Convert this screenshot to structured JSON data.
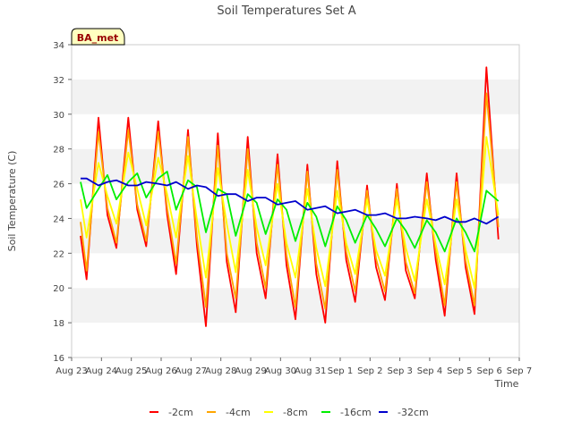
{
  "chart_data": {
    "type": "line",
    "title": "Soil Temperatures Set A",
    "xlabel": "Time",
    "ylabel": "Soil Temperature (C)",
    "annotation": "BA_met",
    "ylim": [
      16,
      34
    ],
    "yticks": [
      16,
      18,
      20,
      22,
      24,
      26,
      28,
      30,
      32,
      34
    ],
    "xlim": [
      0,
      15
    ],
    "xticks": [
      0,
      1,
      2,
      3,
      4,
      5,
      6,
      7,
      8,
      9,
      10,
      11,
      12,
      13,
      14,
      15
    ],
    "xtick_labels": [
      "Aug 23",
      "Aug 24",
      "Aug 25",
      "Aug 26",
      "Aug 27",
      "Aug 28",
      "Aug 29",
      "Aug 30",
      "Aug 31",
      "Sep 1",
      "Sep 2",
      "Sep 3",
      "Sep 4",
      "Sep 5",
      "Sep 6",
      "Sep 7"
    ],
    "grid": "horizontal bands",
    "legend_position": "bottom",
    "x": [
      0.3,
      0.5,
      0.9,
      1.2,
      1.5,
      1.9,
      2.2,
      2.5,
      2.9,
      3.2,
      3.5,
      3.9,
      4.2,
      4.5,
      4.9,
      5.2,
      5.5,
      5.9,
      6.2,
      6.5,
      6.9,
      7.2,
      7.5,
      7.9,
      8.2,
      8.5,
      8.9,
      9.2,
      9.5,
      9.9,
      10.2,
      10.5,
      10.9,
      11.2,
      11.5,
      11.9,
      12.2,
      12.5,
      12.9,
      13.2,
      13.5,
      13.9,
      14.3
    ],
    "series": [
      {
        "name": "-2cm",
        "color": "#ff0000",
        "values": [
          23.0,
          20.5,
          29.8,
          24.2,
          22.3,
          29.8,
          24.5,
          22.4,
          29.6,
          24.2,
          20.8,
          29.1,
          22.4,
          17.8,
          28.9,
          21.5,
          18.6,
          28.7,
          22.0,
          19.4,
          27.7,
          21.3,
          18.2,
          27.1,
          20.8,
          18.0,
          27.3,
          21.6,
          19.2,
          25.9,
          21.2,
          19.3,
          26.0,
          21.0,
          19.4,
          26.6,
          21.6,
          18.4,
          26.6,
          21.2,
          18.5,
          32.7,
          22.8
        ]
      },
      {
        "name": "-4cm",
        "color": "#ffa500",
        "values": [
          23.8,
          21.0,
          29.0,
          24.6,
          22.6,
          29.1,
          24.8,
          22.7,
          29.0,
          24.6,
          21.4,
          28.7,
          22.9,
          18.9,
          28.2,
          22.0,
          19.4,
          28.0,
          22.6,
          20.0,
          27.1,
          21.9,
          18.9,
          26.7,
          21.4,
          18.8,
          26.8,
          22.1,
          19.8,
          25.6,
          21.7,
          19.8,
          25.7,
          21.5,
          19.7,
          26.1,
          22.1,
          19.0,
          26.1,
          21.6,
          19.0,
          31.2,
          23.5
        ]
      },
      {
        "name": "-8cm",
        "color": "#ffff00",
        "values": [
          25.1,
          22.9,
          27.2,
          25.3,
          23.7,
          27.8,
          25.7,
          23.6,
          27.5,
          25.4,
          22.9,
          27.6,
          23.9,
          20.6,
          26.9,
          23.7,
          20.9,
          26.8,
          23.5,
          21.3,
          26.0,
          22.6,
          20.6,
          25.7,
          22.3,
          20.1,
          25.6,
          22.6,
          20.8,
          25.1,
          22.2,
          20.7,
          25.1,
          22.3,
          20.4,
          25.1,
          22.5,
          20.2,
          25.1,
          22.2,
          20.0,
          28.7,
          24.2
        ]
      },
      {
        "name": "-16cm",
        "color": "#00ee00",
        "values": [
          26.1,
          24.6,
          25.7,
          26.5,
          25.1,
          26.1,
          26.6,
          25.2,
          26.3,
          26.7,
          24.5,
          26.2,
          25.8,
          23.2,
          25.7,
          25.4,
          23.0,
          25.4,
          24.9,
          23.1,
          25.1,
          24.5,
          22.7,
          24.9,
          24.1,
          22.4,
          24.7,
          23.9,
          22.6,
          24.2,
          23.4,
          22.4,
          24.0,
          23.3,
          22.3,
          23.9,
          23.2,
          22.1,
          24.0,
          23.2,
          22.1,
          25.6,
          25.0
        ]
      },
      {
        "name": "-32cm",
        "color": "#0000cc",
        "values": [
          26.3,
          26.3,
          25.9,
          26.1,
          26.2,
          25.9,
          25.9,
          26.1,
          26.0,
          25.9,
          26.1,
          25.7,
          25.9,
          25.8,
          25.3,
          25.4,
          25.4,
          25.0,
          25.2,
          25.2,
          24.8,
          24.9,
          25.0,
          24.5,
          24.6,
          24.7,
          24.3,
          24.4,
          24.5,
          24.2,
          24.2,
          24.3,
          24.0,
          24.0,
          24.1,
          24.0,
          23.9,
          24.1,
          23.8,
          23.8,
          24.0,
          23.7,
          24.1
        ]
      }
    ]
  }
}
